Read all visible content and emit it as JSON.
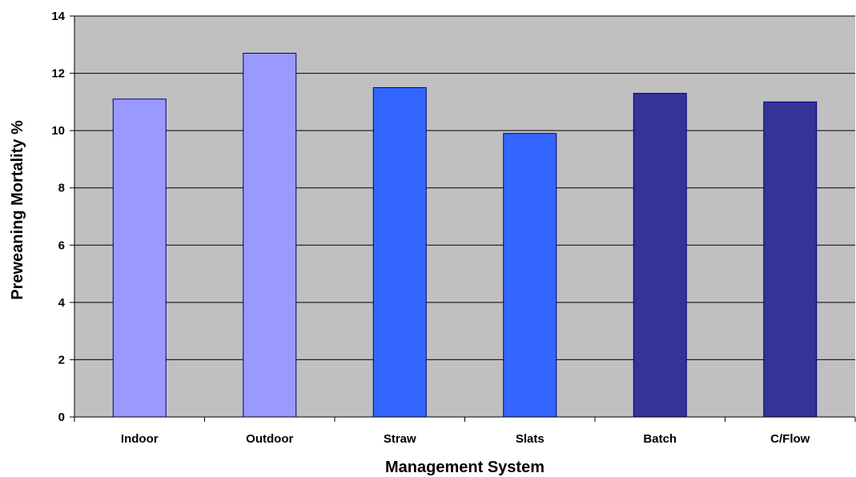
{
  "chart_data": {
    "type": "bar",
    "title": "",
    "xlabel": "Management System",
    "ylabel": "Preweaning Mortality %",
    "categories": [
      "Indoor",
      "Outdoor",
      "Straw",
      "Slats",
      "Batch",
      "C/Flow"
    ],
    "values": [
      11.1,
      12.7,
      11.5,
      9.9,
      11.3,
      11.0
    ],
    "bar_colors": [
      "#9999ff",
      "#9999ff",
      "#3366ff",
      "#3366ff",
      "#333399",
      "#333399"
    ],
    "yticks": [
      0,
      2,
      4,
      6,
      8,
      10,
      12,
      14
    ],
    "ylim": [
      0,
      14
    ],
    "grid": true,
    "legend": "none",
    "plot_background": "#c0c0c0",
    "bar_edge_color": "#000080"
  }
}
